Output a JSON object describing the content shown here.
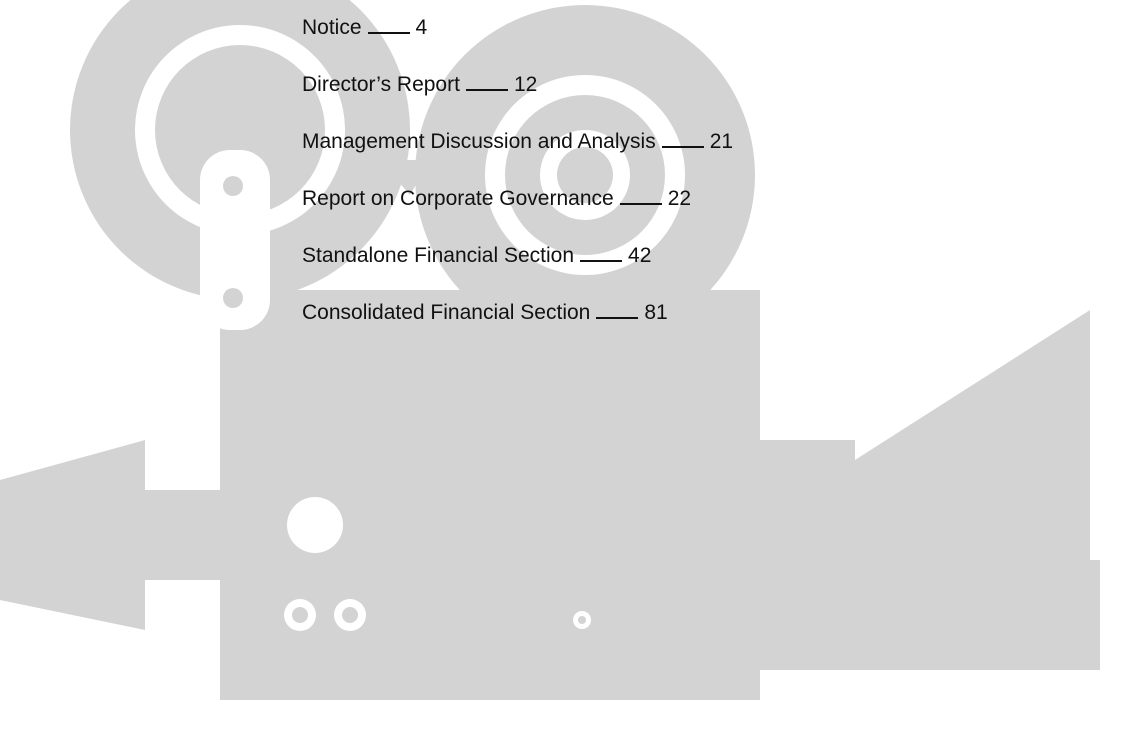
{
  "entries": [
    {
      "title": "Notice",
      "page": 4
    },
    {
      "title": "Director’s Report",
      "page": 12
    },
    {
      "title": "Management Discussion and Analysis",
      "page": 21
    },
    {
      "title": "Report on Corporate Governance",
      "page": 22
    },
    {
      "title": "Standalone Financial Section",
      "page": 42
    },
    {
      "title": "Consolidated Financial Section",
      "page": 81
    }
  ]
}
